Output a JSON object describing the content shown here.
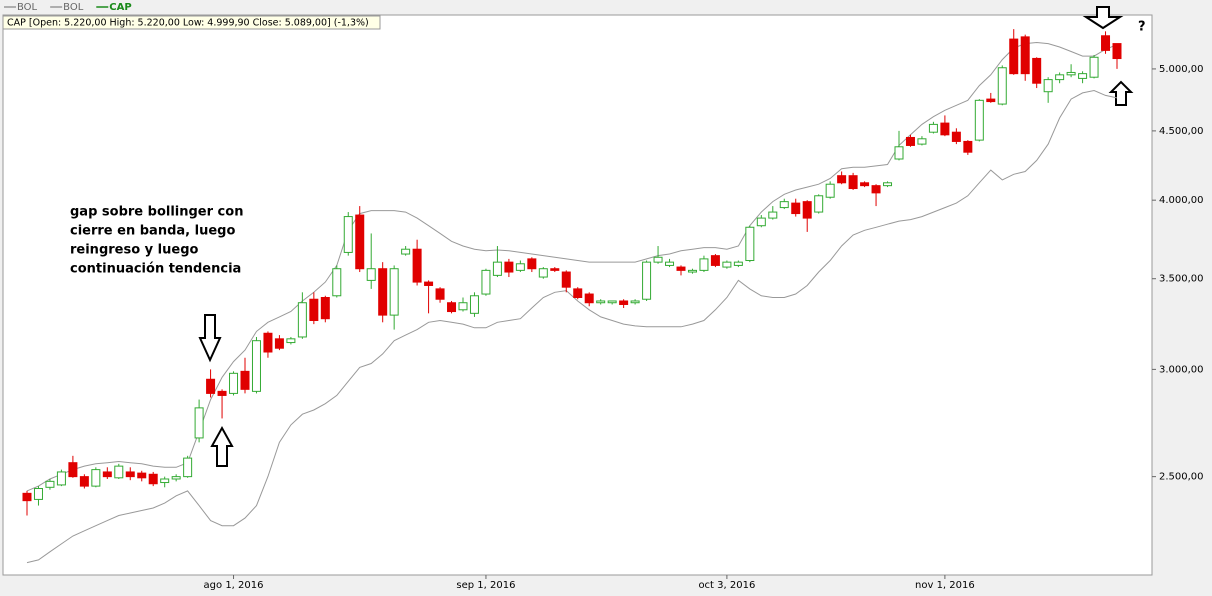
{
  "chart_data": {
    "type": "candlestick",
    "name": "CAP",
    "info": "CAP [Open: 5.220,00  High: 5.220,00  Low: 4.999,90  Close: 5.089,00] (-1,3%)",
    "annotation_lines": [
      "gap sobre bollinger con",
      "cierre en banda, luego",
      "reingreso y luego",
      "continuación tendencia"
    ],
    "question_mark": "?",
    "log_scale": true,
    "grid": false,
    "up_color": "#33aa33",
    "down_color": "#e00000",
    "legend_color": "#1a8a1a",
    "categories": [
      null,
      null,
      null,
      null,
      null,
      null,
      null,
      null,
      null,
      null,
      null,
      null,
      null,
      null,
      null,
      null,
      null,
      null,
      "ago 1, 2016",
      null,
      null,
      null,
      null,
      null,
      null,
      null,
      null,
      null,
      null,
      null,
      null,
      null,
      null,
      null,
      null,
      null,
      null,
      null,
      null,
      null,
      "sep 1, 2016",
      null,
      null,
      null,
      null,
      null,
      null,
      null,
      null,
      null,
      null,
      null,
      null,
      null,
      null,
      null,
      null,
      null,
      null,
      null,
      null,
      "oct 3, 2016",
      null,
      null,
      null,
      null,
      null,
      null,
      null,
      null,
      null,
      null,
      null,
      null,
      null,
      null,
      null,
      null,
      null,
      null,
      "nov 1, 2016",
      null,
      null,
      null,
      null,
      null,
      null,
      null,
      null,
      null,
      null,
      null,
      null,
      null,
      null,
      null
    ],
    "open": [
      2430,
      2405,
      2455,
      2465,
      2560,
      2500,
      2460,
      2520,
      2495,
      2520,
      2515,
      2510,
      2475,
      2490,
      2500,
      2670,
      2950,
      2890,
      2880,
      2990,
      2890,
      3190,
      3160,
      3140,
      3170,
      3380,
      3390,
      3400,
      3660,
      3900,
      3490,
      3560,
      3290,
      3650,
      3680,
      3480,
      3440,
      3360,
      3320,
      3300,
      3410,
      3520,
      3600,
      3550,
      3620,
      3510,
      3560,
      3540,
      3440,
      3410,
      3360,
      3360,
      3370,
      3360,
      3380,
      3600,
      3580,
      3570,
      3540,
      3550,
      3640,
      3570,
      3580,
      3610,
      3830,
      3880,
      3950,
      3980,
      3990,
      3920,
      4020,
      4170,
      4170,
      4120,
      4100,
      4100,
      4290,
      4450,
      4400,
      4490,
      4560,
      4490,
      4420,
      4430,
      4750,
      4710,
      5260,
      5280,
      5090,
      4810,
      4910,
      4950,
      4920,
      4930,
      5290,
      5220
    ],
    "high": [
      2440,
      2460,
      2490,
      2530,
      2590,
      2510,
      2540,
      2540,
      2555,
      2540,
      2525,
      2520,
      2500,
      2510,
      2590,
      2850,
      3000,
      2900,
      2990,
      3060,
      3170,
      3200,
      3180,
      3170,
      3420,
      3420,
      3400,
      3580,
      3920,
      3960,
      3780,
      3600,
      3580,
      3700,
      3740,
      3490,
      3450,
      3370,
      3390,
      3420,
      3560,
      3700,
      3620,
      3610,
      3630,
      3570,
      3570,
      3550,
      3450,
      3420,
      3380,
      3370,
      3380,
      3380,
      3610,
      3700,
      3620,
      3580,
      3560,
      3640,
      3650,
      3610,
      3610,
      3830,
      3900,
      3960,
      4010,
      4010,
      4000,
      4040,
      4130,
      4200,
      4190,
      4130,
      4110,
      4130,
      4500,
      4470,
      4460,
      4570,
      4620,
      4520,
      4430,
      4750,
      4800,
      5030,
      5350,
      5300,
      5100,
      4930,
      4970,
      5040,
      4980,
      5120,
      5330,
      5220
    ],
    "low": [
      2340,
      2380,
      2445,
      2460,
      2495,
      2450,
      2455,
      2490,
      2490,
      2485,
      2480,
      2460,
      2455,
      2480,
      2495,
      2650,
      2860,
      2760,
      2870,
      2880,
      2880,
      3060,
      3100,
      3130,
      3160,
      3240,
      3250,
      3390,
      3640,
      3540,
      3440,
      3250,
      3210,
      3640,
      3460,
      3300,
      3360,
      3300,
      3310,
      3280,
      3400,
      3510,
      3510,
      3540,
      3540,
      3500,
      3540,
      3420,
      3380,
      3340,
      3350,
      3350,
      3330,
      3350,
      3370,
      3590,
      3570,
      3520,
      3530,
      3540,
      3570,
      3560,
      3570,
      3600,
      3820,
      3870,
      3940,
      3890,
      3790,
      3910,
      4010,
      4110,
      4070,
      4090,
      3960,
      4090,
      4280,
      4380,
      4390,
      4480,
      4460,
      4400,
      4320,
      4420,
      4720,
      4700,
      4950,
      4900,
      4840,
      4720,
      4880,
      4930,
      4880,
      4920,
      5130,
      4999.9
    ],
    "close": [
      2400,
      2450,
      2480,
      2520,
      2500,
      2460,
      2530,
      2500,
      2545,
      2500,
      2495,
      2470,
      2490,
      2500,
      2580,
      2810,
      2880,
      2870,
      2980,
      2900,
      3150,
      3090,
      3110,
      3160,
      3360,
      3260,
      3270,
      3560,
      3890,
      3560,
      3560,
      3290,
      3560,
      3680,
      3480,
      3460,
      3380,
      3310,
      3360,
      3400,
      3550,
      3600,
      3540,
      3590,
      3560,
      3560,
      3550,
      3450,
      3390,
      3360,
      3370,
      3370,
      3350,
      3370,
      3600,
      3630,
      3600,
      3550,
      3550,
      3620,
      3580,
      3600,
      3600,
      3820,
      3880,
      3920,
      3990,
      3910,
      3880,
      4030,
      4110,
      4120,
      4080,
      4100,
      4050,
      4120,
      4380,
      4390,
      4440,
      4550,
      4470,
      4420,
      4340,
      4740,
      4730,
      5010,
      4960,
      4960,
      4880,
      4910,
      4950,
      4970,
      4960,
      5100,
      5160,
      5089
    ],
    "series": [
      {
        "name": "BOL",
        "color": "#999999",
        "values": [
          2440,
          2460,
          2490,
          2510,
          2530,
          2545,
          2555,
          2560,
          2565,
          2560,
          2555,
          2545,
          2540,
          2540,
          2560,
          2700,
          2850,
          2960,
          3040,
          3100,
          3200,
          3250,
          3280,
          3310,
          3370,
          3420,
          3480,
          3580,
          3800,
          3910,
          3930,
          3930,
          3930,
          3920,
          3880,
          3830,
          3780,
          3730,
          3700,
          3680,
          3670,
          3675,
          3670,
          3660,
          3650,
          3640,
          3630,
          3620,
          3610,
          3600,
          3600,
          3600,
          3600,
          3600,
          3620,
          3640,
          3650,
          3670,
          3680,
          3690,
          3690,
          3680,
          3700,
          3830,
          3920,
          3990,
          4040,
          4070,
          4090,
          4110,
          4150,
          4220,
          4230,
          4230,
          4240,
          4250,
          4390,
          4470,
          4550,
          4610,
          4660,
          4700,
          4740,
          4860,
          4950,
          5080,
          5180,
          5220,
          5230,
          5220,
          5190,
          5150,
          5110,
          5110,
          5170,
          5210
        ]
      },
      {
        "name": "BOL",
        "color": "#999999",
        "values": [
          2160,
          2170,
          2200,
          2230,
          2260,
          2280,
          2300,
          2320,
          2340,
          2350,
          2360,
          2370,
          2390,
          2420,
          2440,
          2380,
          2320,
          2300,
          2300,
          2330,
          2380,
          2500,
          2650,
          2730,
          2780,
          2800,
          2830,
          2870,
          2940,
          3010,
          3030,
          3080,
          3150,
          3180,
          3210,
          3250,
          3260,
          3250,
          3240,
          3220,
          3220,
          3250,
          3260,
          3270,
          3330,
          3390,
          3420,
          3430,
          3370,
          3320,
          3280,
          3260,
          3240,
          3230,
          3225,
          3225,
          3225,
          3225,
          3240,
          3260,
          3320,
          3390,
          3490,
          3440,
          3400,
          3390,
          3390,
          3410,
          3460,
          3540,
          3610,
          3700,
          3770,
          3800,
          3820,
          3840,
          3860,
          3870,
          3890,
          3920,
          3950,
          3980,
          4030,
          4120,
          4210,
          4140,
          4180,
          4200,
          4280,
          4400,
          4600,
          4750,
          4800,
          4820,
          4780,
          4760
        ]
      }
    ],
    "ylim": [
      2115,
      5480
    ],
    "yticks": [
      {
        "value": 2500,
        "label": "2.500,00"
      },
      {
        "value": 3000,
        "label": "3.000,00"
      },
      {
        "value": 3500,
        "label": "3.500,00"
      },
      {
        "value": 4000,
        "label": "4.000,00"
      },
      {
        "value": 4500,
        "label": "4.500,00"
      },
      {
        "value": 5000,
        "label": "5.000,00"
      }
    ]
  }
}
